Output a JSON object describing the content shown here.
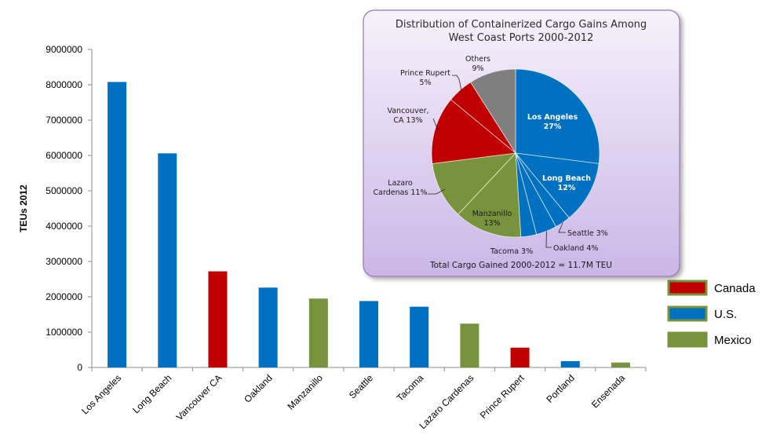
{
  "chart_data": [
    {
      "type": "bar",
      "title": "",
      "xlabel": "",
      "ylabel": "TEUs 2012",
      "ylim": [
        0,
        9000000
      ],
      "yticks": [
        0,
        1000000,
        2000000,
        3000000,
        4000000,
        5000000,
        6000000,
        7000000,
        8000000,
        9000000
      ],
      "grid": false,
      "categories": [
        "Los Angeles",
        "Long Beach",
        "Vancouver CA",
        "Oakland",
        "Manzanillo",
        "Seattle",
        "Tacoma",
        "Lazaro Cardenas",
        "Prince Rupert",
        "Portland",
        "Ensenada"
      ],
      "values": [
        8080000,
        6060000,
        2720000,
        2260000,
        1950000,
        1880000,
        1720000,
        1240000,
        560000,
        180000,
        140000
      ],
      "groups": [
        "U.S.",
        "U.S.",
        "Canada",
        "U.S.",
        "Mexico",
        "U.S.",
        "U.S.",
        "Mexico",
        "Canada",
        "U.S.",
        "Mexico"
      ],
      "legend": {
        "placement": "right",
        "entries": [
          {
            "name": "Canada",
            "color": "#c00000"
          },
          {
            "name": "U.S.",
            "color": "#0070c0"
          },
          {
            "name": "Mexico",
            "color": "#77933c"
          }
        ]
      }
    },
    {
      "type": "pie",
      "title": "Distribution of Containerized Cargo Gains Among West Coast Ports 2000-2012",
      "title_lines": [
        "Distribution of Containerized Cargo Gains Among",
        "West Coast Ports 2000-2012"
      ],
      "footer": "Total Cargo Gained 2000-2012 = 11.7M TEU",
      "slices": [
        {
          "name": "Los Angeles",
          "label": "27%",
          "value": 27,
          "color": "#0070c0",
          "label_lines": [
            "Los Angeles",
            "27%"
          ]
        },
        {
          "name": "Long Beach",
          "label": "12%",
          "value": 12,
          "color": "#0070c0",
          "label_lines": [
            "Long Beach",
            "12%"
          ]
        },
        {
          "name": "Seattle",
          "label": "3%",
          "value": 3,
          "color": "#0070c0",
          "label_lines": [
            "Seattle 3%"
          ]
        },
        {
          "name": "Oakland",
          "label": "4%",
          "value": 4,
          "color": "#0070c0",
          "label_lines": [
            "Oakland 4%"
          ]
        },
        {
          "name": "Tacoma",
          "label": "3%",
          "value": 3,
          "color": "#0070c0",
          "label_lines": [
            "Tacoma 3%"
          ]
        },
        {
          "name": "Manzanillo",
          "label": "13%",
          "value": 13,
          "color": "#77933c",
          "label_lines": [
            "Manzanillo",
            "13%"
          ]
        },
        {
          "name": "Lazaro Cardenas",
          "label": "11%",
          "value": 11,
          "color": "#77933c",
          "label_lines": [
            "Lazaro",
            "Cardenas 11%"
          ]
        },
        {
          "name": "Vancouver, CA",
          "label": "13%",
          "value": 13,
          "color": "#c00000",
          "label_lines": [
            "Vancouver,",
            "CA 13%"
          ]
        },
        {
          "name": "Prince Rupert",
          "label": "5%",
          "value": 5,
          "color": "#c00000",
          "label_lines": [
            "Prince Rupert",
            "5%"
          ]
        },
        {
          "name": "Others",
          "label": "9%",
          "value": 9,
          "color": "#7f7f7f",
          "label_lines": [
            "Others",
            "9%"
          ]
        }
      ]
    }
  ],
  "colors": {
    "canada": "#c00000",
    "us": "#0070c0",
    "mexico": "#77933c",
    "others": "#7f7f7f",
    "inset_top": "#f6f1fb",
    "inset_bottom": "#cbb6e6",
    "inset_border": "#9678b6"
  }
}
